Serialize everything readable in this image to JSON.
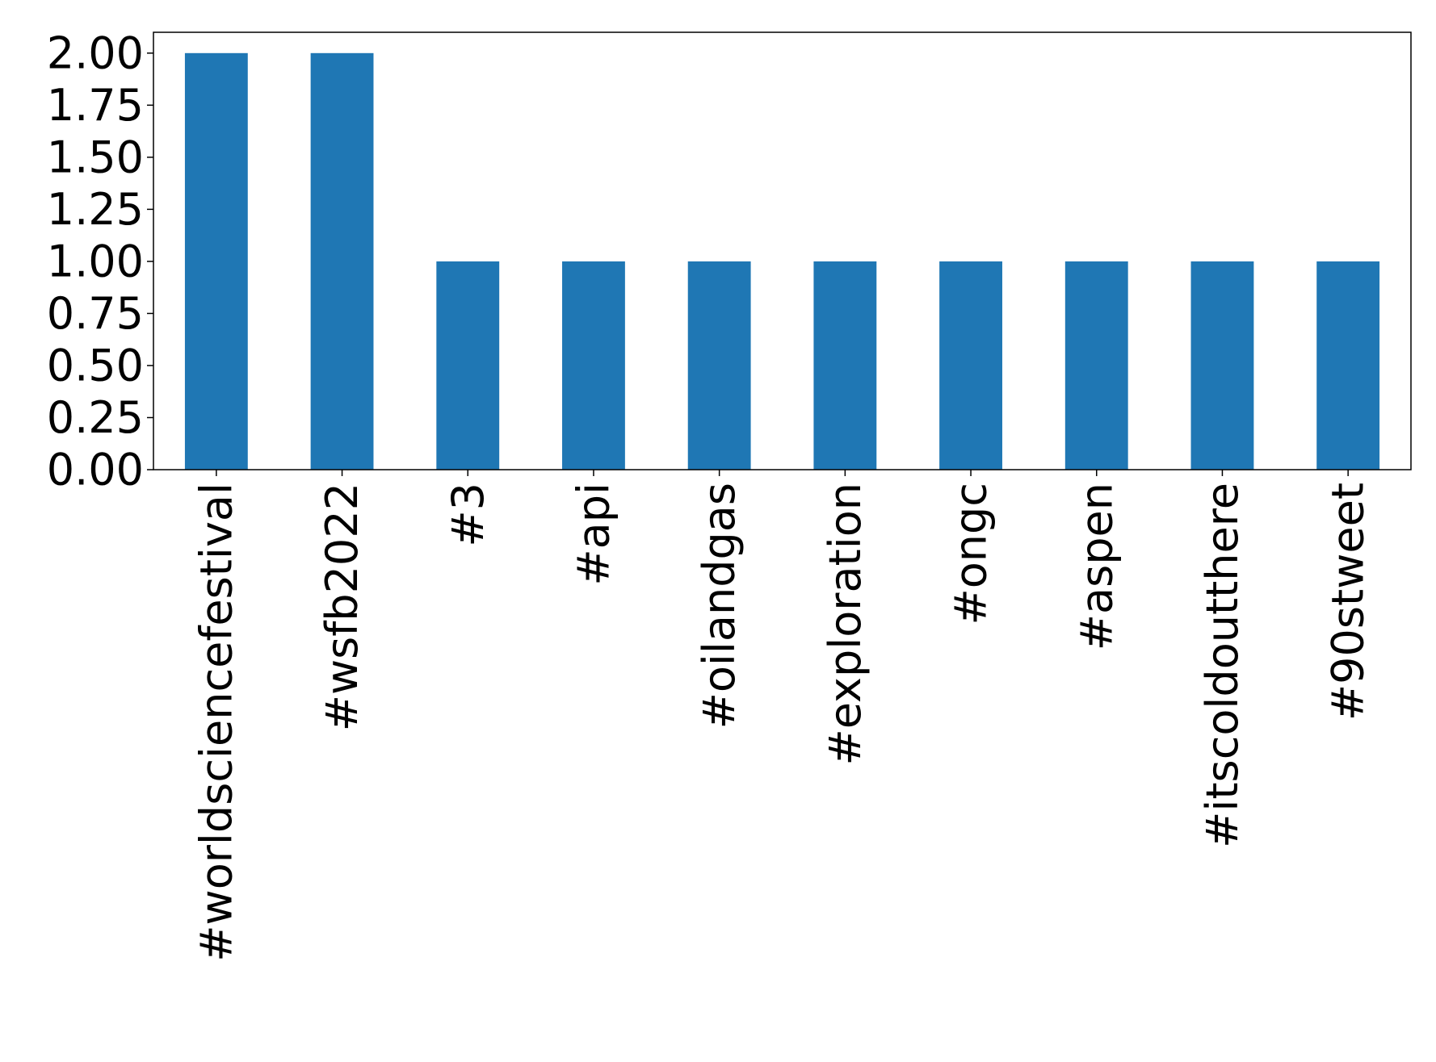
{
  "chart_data": {
    "type": "bar",
    "title": "",
    "xlabel": "",
    "ylabel": "",
    "categories": [
      "#worldsciencefestival",
      "#wsfb2022",
      "#3",
      "#api",
      "#oilandgas",
      "#exploration",
      "#ongc",
      "#aspen",
      "#itscoldoutthere",
      "#90stweet"
    ],
    "values": [
      2,
      2,
      1,
      1,
      1,
      1,
      1,
      1,
      1,
      1
    ],
    "ylim": [
      0,
      2.1
    ],
    "yticks": [
      "0.00",
      "0.25",
      "0.50",
      "0.75",
      "1.00",
      "1.25",
      "1.50",
      "1.75",
      "2.00"
    ],
    "bar_color": "#1f77b4",
    "grid": false,
    "legend": "none"
  }
}
